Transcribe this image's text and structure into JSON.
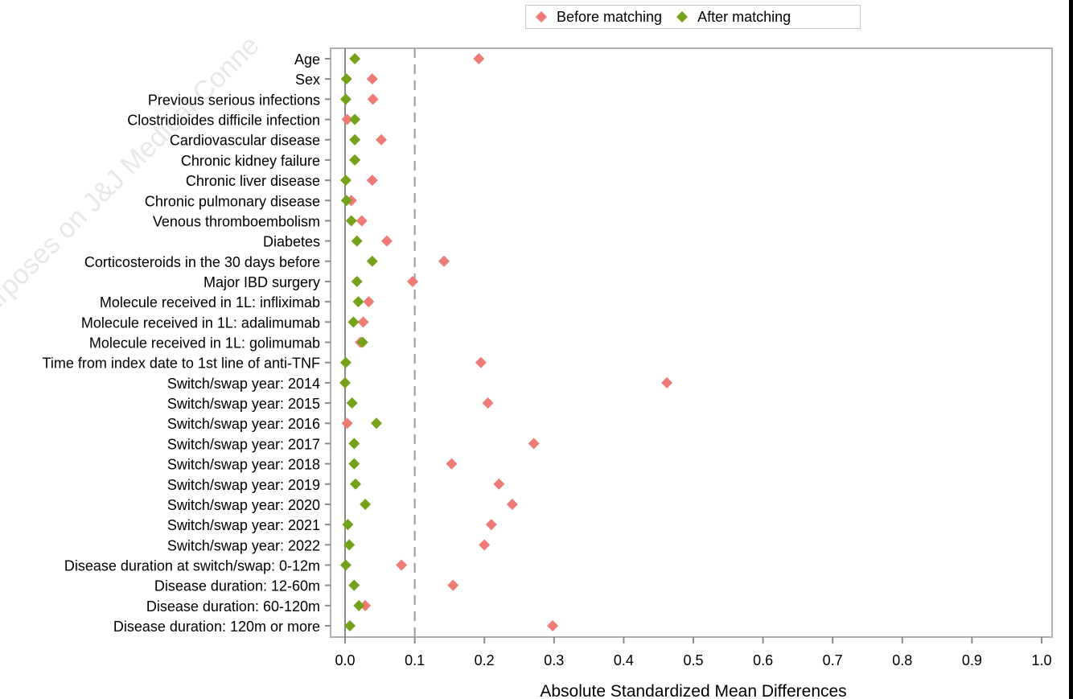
{
  "watermark": {
    "text": "urposes on J&J Medical Conne"
  },
  "legend": {
    "items": [
      {
        "label": "Before matching",
        "color": "#EE7B76"
      },
      {
        "label": "After matching",
        "color": "#74A21A"
      }
    ]
  },
  "chart_data": {
    "type": "scatter",
    "orientation": "horizontal",
    "xlabel": "Absolute Standardized Mean Differences",
    "ylabel": "",
    "xlim": [
      0.0,
      1.0
    ],
    "xticks": [
      "0.0",
      "0.1",
      "0.2",
      "0.3",
      "0.4",
      "0.5",
      "0.6",
      "0.7",
      "0.8",
      "0.9",
      "1.0"
    ],
    "reference_lines": [
      0.0,
      0.1
    ],
    "grid": false,
    "legend_position": "top",
    "categories": [
      "Age",
      "Sex",
      "Previous serious infections",
      "Clostridioides difficile infection",
      "Cardiovascular disease",
      "Chronic kidney failure",
      "Chronic liver disease",
      "Chronic pulmonary disease",
      "Venous thromboembolism",
      "Diabetes",
      "Corticosteroids in the 30 days before",
      "Major IBD surgery",
      "Molecule received in 1L: infliximab",
      "Molecule received in 1L: adalimumab",
      "Molecule received in 1L: golimumab",
      "Time from index date to 1st line of anti-TNF",
      "Switch/swap year: 2014",
      "Switch/swap year: 2015",
      "Switch/swap year: 2016",
      "Switch/swap year: 2017",
      "Switch/swap year: 2018",
      "Switch/swap year: 2019",
      "Switch/swap year: 2020",
      "Switch/swap year: 2021",
      "Switch/swap year: 2022",
      "Disease duration at switch/swap: 0-12m",
      "Disease duration: 12-60m",
      "Disease duration: 60-120m",
      "Disease duration: 120m or more"
    ],
    "series": [
      {
        "name": "Before matching",
        "color": "#EE7B76",
        "values": [
          0.192,
          0.039,
          0.04,
          0.003,
          0.052,
          0.014,
          0.039,
          0.009,
          0.024,
          0.06,
          0.142,
          0.097,
          0.034,
          0.026,
          0.022,
          0.195,
          0.462,
          0.205,
          0.003,
          0.271,
          0.153,
          0.221,
          0.24,
          0.21,
          0.2,
          0.081,
          0.155,
          0.029,
          0.298
        ]
      },
      {
        "name": "After matching",
        "color": "#74A21A",
        "values": [
          0.014,
          0.002,
          0.001,
          0.014,
          0.014,
          0.014,
          0.001,
          0.002,
          0.009,
          0.017,
          0.039,
          0.017,
          0.019,
          0.012,
          0.025,
          0.001,
          0.0,
          0.01,
          0.045,
          0.013,
          0.013,
          0.015,
          0.029,
          0.004,
          0.006,
          0.001,
          0.013,
          0.02,
          0.007
        ]
      }
    ]
  }
}
